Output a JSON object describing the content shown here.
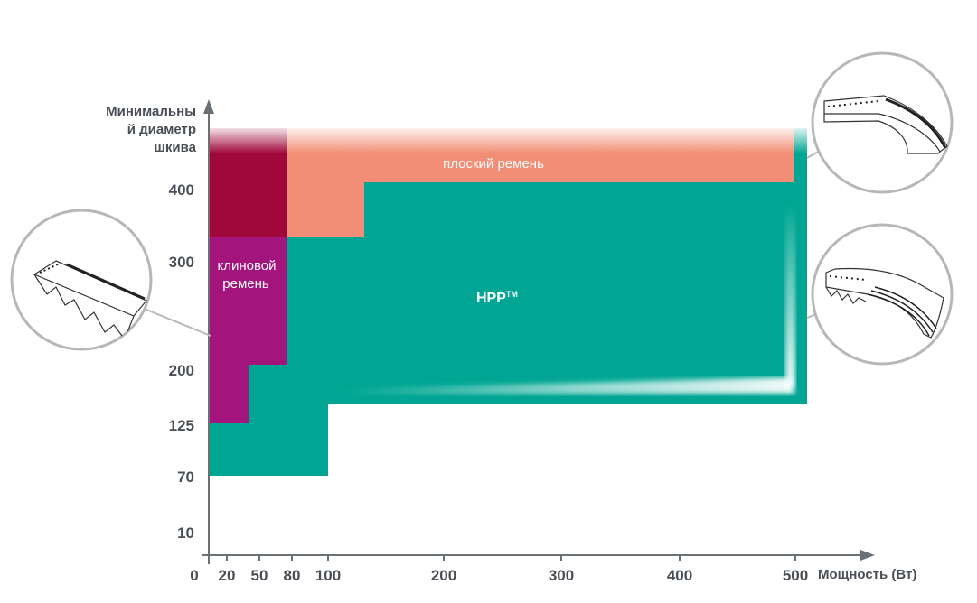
{
  "chart_data": {
    "type": "area",
    "ylabel_lines": [
      "Минимальны",
      "й диаметр",
      "шкива"
    ],
    "xlabel": "Мощность (Вт)",
    "x_ticks": [
      "0",
      "20",
      "50",
      "80",
      "100",
      "200",
      "300",
      "400",
      "500"
    ],
    "y_ticks": [
      "10",
      "70",
      "125",
      "200",
      "300",
      "400"
    ],
    "regions": [
      {
        "name": "плоский ремень",
        "color": "#f28e76",
        "boundary": [
          {
            "x_from": "80",
            "x_to": "100",
            "y_min": "300"
          },
          {
            "x_from": "100",
            "x_to": "500",
            "y_min": "400"
          }
        ]
      },
      {
        "name_lines": [
          "клиновой",
          "ремень"
        ],
        "color": "#a3157d",
        "boundary": [
          {
            "x_from": "0",
            "x_to": "50",
            "y_min": "125"
          },
          {
            "x_from": "50",
            "x_to": "80",
            "y_min": "200"
          }
        ]
      },
      {
        "name": "HPP",
        "name_sup": "TM",
        "color": "#00a693",
        "boundary": [
          {
            "x_from": "0",
            "x_to": "100",
            "y_min": "70"
          },
          {
            "x_from": "100",
            "x_to": "500",
            "y_min": "125"
          }
        ]
      }
    ],
    "upper_color": "#a0073a",
    "grid": false,
    "insets": [
      "flat-belt-icon",
      "v-belt-icon",
      "ribbed-belt-icon"
    ]
  }
}
